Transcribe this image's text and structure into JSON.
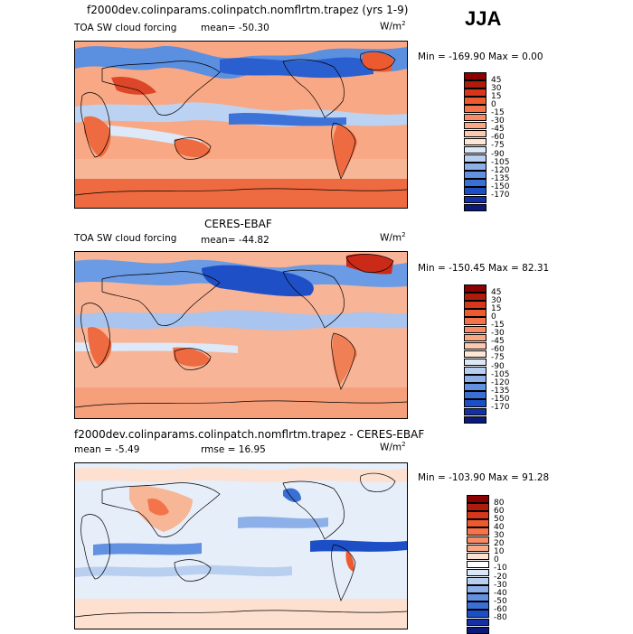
{
  "season": "JJA",
  "units_base": "W/m",
  "units_exp": "2",
  "panels": [
    {
      "title": "f2000dev.colinparams.colinpatch.nomflrtm.trapez (yrs 1-9)",
      "left_label": "TOA SW cloud forcing",
      "mid_label": "mean= -50.30",
      "minmax": "Min = -169.90 Max =    0.00",
      "colorbar": {
        "labels": [
          "45",
          "30",
          "15",
          "0",
          "-15",
          "-30",
          "-45",
          "-60",
          "-75",
          "-90",
          "-105",
          "-120",
          "-135",
          "-150",
          "-170"
        ],
        "colors": [
          "#8b0000",
          "#b01c0c",
          "#d6361a",
          "#ee5a30",
          "#f4734a",
          "#f78c66",
          "#f8a884",
          "#fbc9ad",
          "#fde7d7",
          "#dce8f7",
          "#b9cff0",
          "#8db0e8",
          "#6191e0",
          "#3a6fd6",
          "#1c4ec6",
          "#1430a4",
          "#0b1a7a"
        ]
      }
    },
    {
      "title": "CERES-EBAF",
      "left_label": "TOA SW cloud forcing",
      "mid_label": "mean= -44.82",
      "minmax": "Min = -150.45 Max =  82.31",
      "colorbar": {
        "labels": [
          "45",
          "30",
          "15",
          "0",
          "-15",
          "-30",
          "-45",
          "-60",
          "-75",
          "-90",
          "-105",
          "-120",
          "-135",
          "-150",
          "-170"
        ],
        "colors": [
          "#8b0000",
          "#b01c0c",
          "#d6361a",
          "#ee5a30",
          "#f4734a",
          "#f78c66",
          "#f8a884",
          "#fbc9ad",
          "#fde7d7",
          "#dce8f7",
          "#b9cff0",
          "#8db0e8",
          "#6191e0",
          "#3a6fd6",
          "#1c4ec6",
          "#1430a4",
          "#0b1a7a"
        ]
      }
    },
    {
      "title": "f2000dev.colinparams.colinpatch.nomflrtm.trapez - CERES-EBAF",
      "left_label": "mean =  -5.49",
      "mid_label": "rmse =  16.95",
      "minmax": "Min = -103.90 Max =  91.28",
      "colorbar": {
        "labels": [
          "80",
          "60",
          "50",
          "40",
          "30",
          "20",
          "10",
          "0",
          "-10",
          "-20",
          "-30",
          "-40",
          "-50",
          "-60",
          "-80"
        ],
        "colors": [
          "#8b0000",
          "#b01c0c",
          "#d6361a",
          "#ee5a30",
          "#f4734a",
          "#f78c66",
          "#f8a884",
          "#fde0cf",
          "#ffffff",
          "#dce8f7",
          "#b9cff0",
          "#8db0e8",
          "#6191e0",
          "#3a6fd6",
          "#1c4ec6",
          "#1430a4",
          "#0b1a7a"
        ]
      }
    }
  ]
}
